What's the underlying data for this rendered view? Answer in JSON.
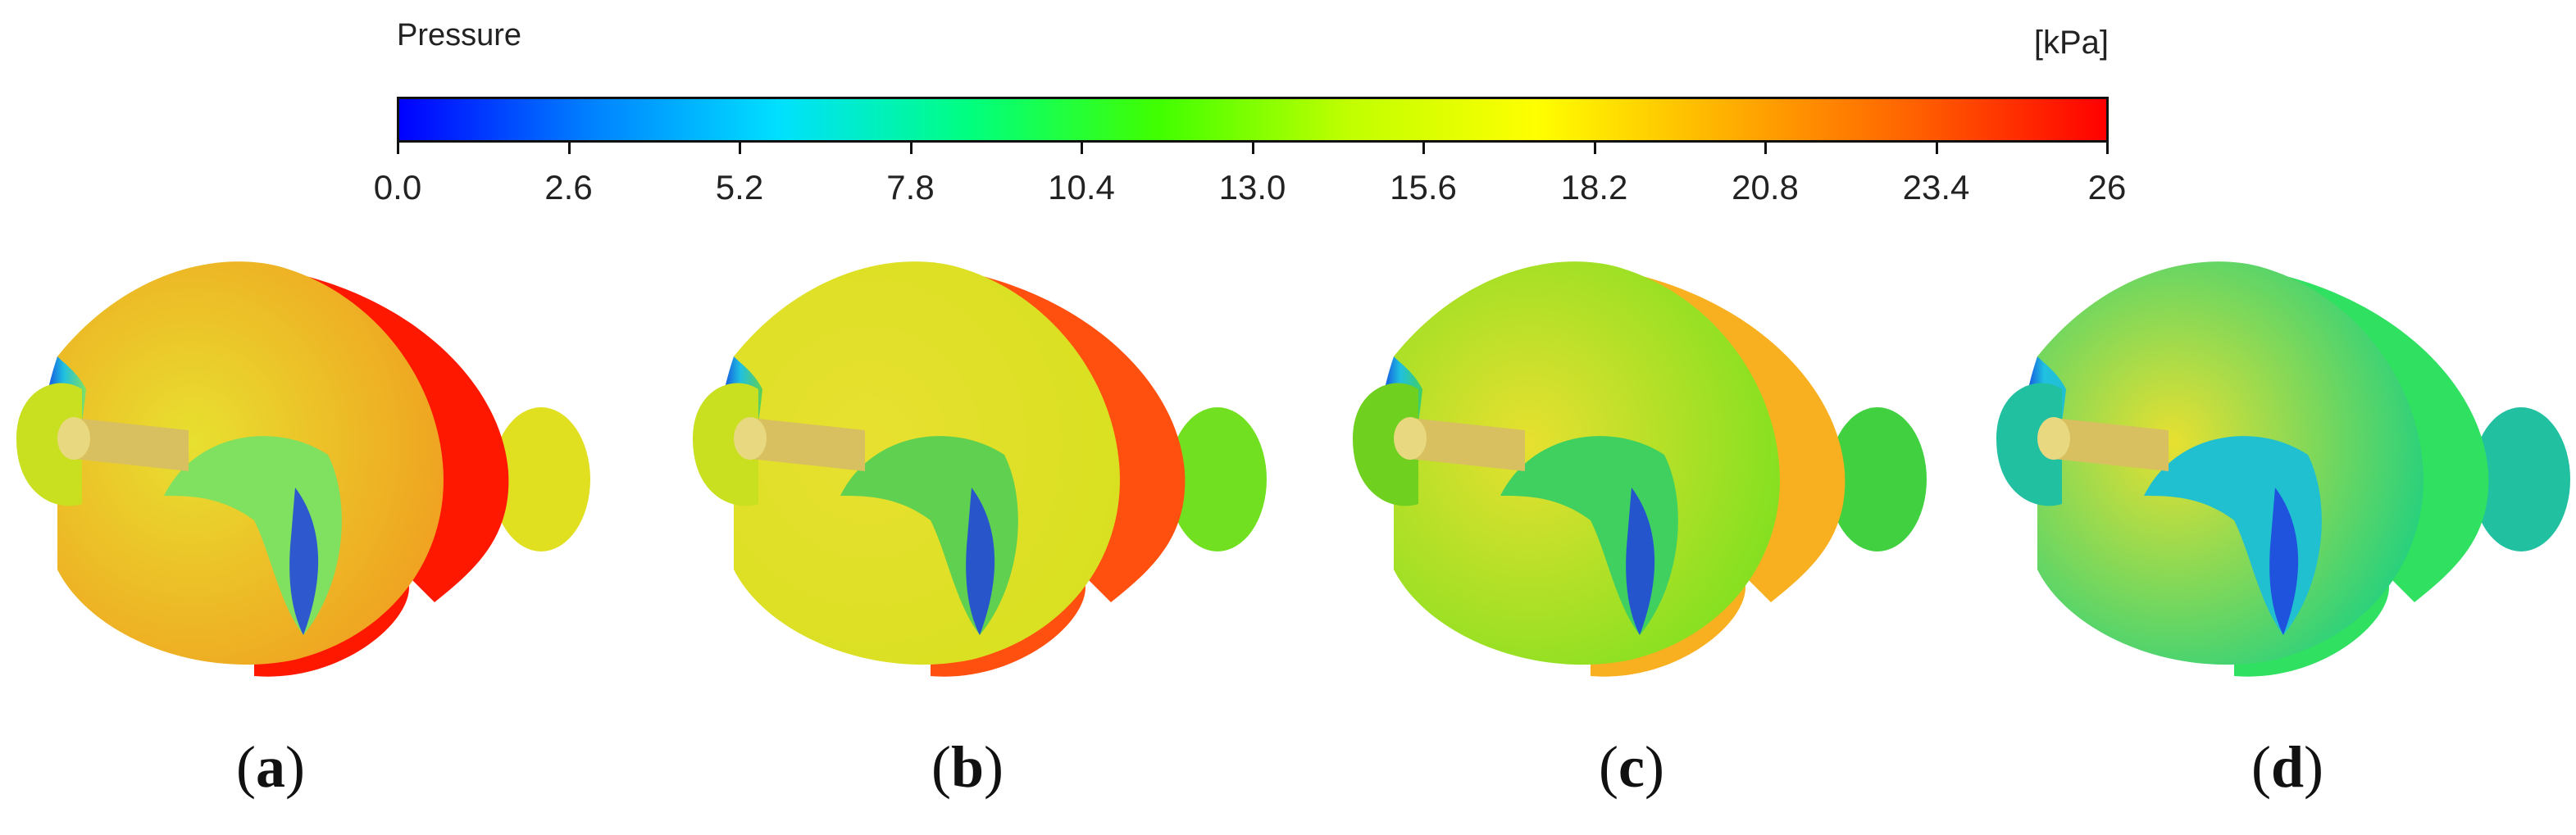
{
  "legend": {
    "title": "Pressure",
    "units": "[kPa]",
    "min": 0,
    "max": 26,
    "ticks": [
      "0.0",
      "2.6",
      "5.2",
      "7.8",
      "10.4",
      "13.0",
      "15.6",
      "18.2",
      "20.8",
      "23.4",
      "26"
    ],
    "gradient_colors": [
      "#0000ff",
      "#0080ff",
      "#00e0ff",
      "#00ff80",
      "#40ff00",
      "#c0ff00",
      "#ffff00",
      "#ffb000",
      "#ff6000",
      "#ff0000"
    ]
  },
  "panels": [
    {
      "label": "a",
      "front_color": "#f0a020",
      "back_color": "#ff1800",
      "tail_color": "#e0e020",
      "hub_color": "#c8e020",
      "inner_color": "#80e060"
    },
    {
      "label": "b",
      "front_color": "#d8e020",
      "back_color": "#ff5010",
      "tail_color": "#70e020",
      "hub_color": "#c8e020",
      "inner_color": "#60d050"
    },
    {
      "label": "c",
      "front_color": "#80e020",
      "back_color": "#f8b020",
      "tail_color": "#40d040",
      "hub_color": "#70d020",
      "inner_color": "#40d060"
    },
    {
      "label": "d",
      "front_color": "#20d080",
      "back_color": "#30e060",
      "tail_color": "#20c0a0",
      "hub_color": "#20c0a0",
      "inner_color": "#20c0d0"
    }
  ]
}
